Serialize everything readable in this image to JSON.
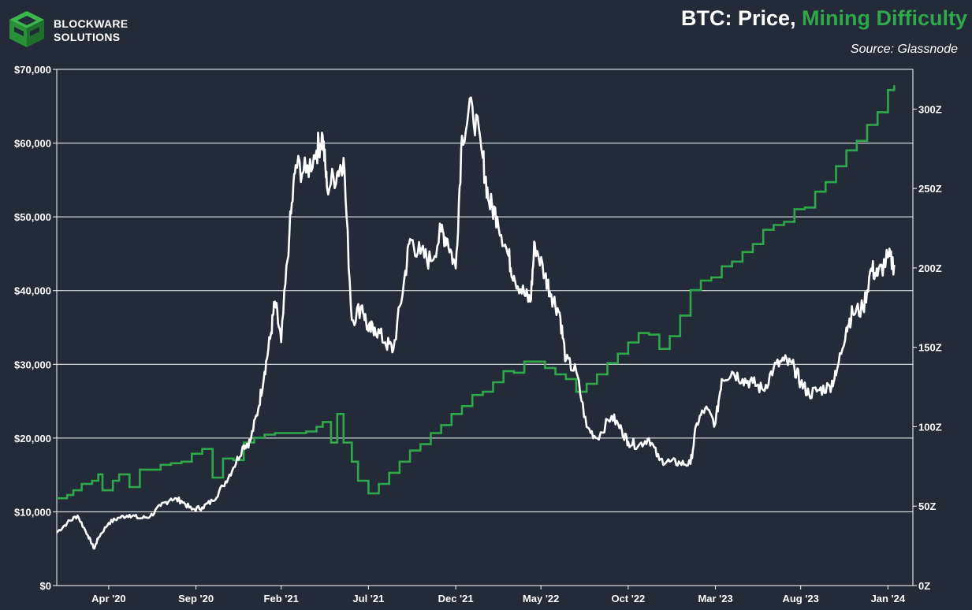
{
  "logo": {
    "line1": "BLOCKWARE",
    "line2": "SOLUTIONS"
  },
  "title": {
    "part1": "BTC: Price, ",
    "part2": "Mining Difficulty"
  },
  "subtitle": "Source: Glassnode",
  "colors": {
    "background": "#232a38",
    "price": "#ffffff",
    "difficulty": "#2ea84a",
    "grid": "#ffffff"
  },
  "chart_data": {
    "type": "line",
    "x_range": [
      2020.0,
      2024.12
    ],
    "xticks": [
      {
        "label": "Apr '20",
        "x": 2020.25
      },
      {
        "label": "Sep '20",
        "x": 2020.67
      },
      {
        "label": "Feb '21",
        "x": 2021.08
      },
      {
        "label": "Jul '21",
        "x": 2021.5
      },
      {
        "label": "Dec '21",
        "x": 2021.92
      },
      {
        "label": "May '22",
        "x": 2022.33
      },
      {
        "label": "Oct '22",
        "x": 2022.75
      },
      {
        "label": "Mar '23",
        "x": 2023.17
      },
      {
        "label": "Aug '23",
        "x": 2023.58
      },
      {
        "label": "Jan '24",
        "x": 2024.0
      }
    ],
    "y_left": {
      "min": 0,
      "max": 70000,
      "ticks": [
        {
          "label": "$0",
          "v": 0
        },
        {
          "label": "$10,000",
          "v": 10000
        },
        {
          "label": "$20,000",
          "v": 20000
        },
        {
          "label": "$30,000",
          "v": 30000
        },
        {
          "label": "$40,000",
          "v": 40000
        },
        {
          "label": "$50,000",
          "v": 50000
        },
        {
          "label": "$60,000",
          "v": 60000
        },
        {
          "label": "$70,000",
          "v": 70000
        }
      ]
    },
    "y_right": {
      "min": 0,
      "max": 325,
      "ticks": [
        {
          "label": "0Z",
          "v": 0
        },
        {
          "label": "50Z",
          "v": 50
        },
        {
          "label": "100Z",
          "v": 100
        },
        {
          "label": "150Z",
          "v": 150
        },
        {
          "label": "200Z",
          "v": 200
        },
        {
          "label": "250Z",
          "v": 250
        },
        {
          "label": "300Z",
          "v": 300
        }
      ]
    },
    "series": [
      {
        "name": "Price",
        "axis": "left",
        "x": [
          2020.0,
          2020.05,
          2020.1,
          2020.15,
          2020.18,
          2020.2,
          2020.25,
          2020.3,
          2020.35,
          2020.4,
          2020.45,
          2020.5,
          2020.55,
          2020.6,
          2020.65,
          2020.7,
          2020.75,
          2020.8,
          2020.85,
          2020.9,
          2020.93,
          2020.97,
          2021.0,
          2021.03,
          2021.05,
          2021.08,
          2021.12,
          2021.15,
          2021.2,
          2021.25,
          2021.28,
          2021.3,
          2021.35,
          2021.38,
          2021.42,
          2021.47,
          2021.5,
          2021.53,
          2021.58,
          2021.62,
          2021.67,
          2021.7,
          2021.75,
          2021.8,
          2021.85,
          2021.88,
          2021.92,
          2021.95,
          2022.0,
          2022.05,
          2022.08,
          2022.12,
          2022.17,
          2022.2,
          2022.25,
          2022.28,
          2022.3,
          2022.35,
          2022.38,
          2022.42,
          2022.45,
          2022.5,
          2022.55,
          2022.6,
          2022.67,
          2022.72,
          2022.75,
          2022.8,
          2022.85,
          2022.9,
          2022.95,
          2023.0,
          2023.05,
          2023.08,
          2023.12,
          2023.17,
          2023.2,
          2023.25,
          2023.3,
          2023.35,
          2023.4,
          2023.45,
          2023.5,
          2023.55,
          2023.58,
          2023.62,
          2023.67,
          2023.72,
          2023.75,
          2023.8,
          2023.83,
          2023.88,
          2023.92,
          2023.95,
          2024.0,
          2024.03
        ],
        "values": [
          7200,
          8500,
          9500,
          6800,
          5000,
          6500,
          8500,
          9200,
          9600,
          9100,
          9400,
          10800,
          11800,
          11500,
          10300,
          10600,
          11500,
          13500,
          16000,
          19000,
          19500,
          24000,
          29000,
          34000,
          38500,
          33000,
          48000,
          57000,
          56000,
          59000,
          61000,
          54000,
          56000,
          58000,
          36000,
          38000,
          34500,
          35000,
          33000,
          32000,
          41000,
          47000,
          45000,
          44000,
          48000,
          47000,
          43000,
          61000,
          65000,
          58000,
          52000,
          50000,
          45000,
          42000,
          39500,
          38500,
          46500,
          42000,
          39500,
          37000,
          30500,
          29000,
          21500,
          20000,
          23000,
          21000,
          19500,
          19000,
          20000,
          17000,
          16800,
          16600,
          16500,
          22000,
          24000,
          22000,
          28000,
          29000,
          28000,
          27500,
          26500,
          29500,
          30500,
          29500,
          27500,
          26000,
          26500,
          27000,
          28500,
          35000,
          37000,
          37500,
          43000,
          42000,
          44500,
          43500
        ]
      },
      {
        "name": "Mining Difficulty",
        "axis": "right",
        "x": [
          2020.0,
          2020.05,
          2020.08,
          2020.12,
          2020.17,
          2020.2,
          2020.22,
          2020.27,
          2020.3,
          2020.35,
          2020.4,
          2020.45,
          2020.5,
          2020.55,
          2020.6,
          2020.65,
          2020.7,
          2020.75,
          2020.8,
          2020.85,
          2020.9,
          2020.95,
          2021.0,
          2021.05,
          2021.1,
          2021.15,
          2021.2,
          2021.25,
          2021.28,
          2021.32,
          2021.35,
          2021.38,
          2021.42,
          2021.45,
          2021.5,
          2021.55,
          2021.6,
          2021.65,
          2021.7,
          2021.75,
          2021.8,
          2021.85,
          2021.9,
          2021.95,
          2022.0,
          2022.05,
          2022.1,
          2022.15,
          2022.2,
          2022.25,
          2022.3,
          2022.35,
          2022.4,
          2022.45,
          2022.5,
          2022.55,
          2022.6,
          2022.65,
          2022.7,
          2022.75,
          2022.8,
          2022.85,
          2022.9,
          2022.95,
          2023.0,
          2023.05,
          2023.1,
          2023.15,
          2023.2,
          2023.25,
          2023.3,
          2023.35,
          2023.4,
          2023.45,
          2023.5,
          2023.55,
          2023.6,
          2023.65,
          2023.7,
          2023.75,
          2023.8,
          2023.85,
          2023.9,
          2023.95,
          2024.0,
          2024.03
        ],
        "values": [
          55,
          57,
          60,
          64,
          66,
          70,
          60,
          66,
          70,
          62,
          73,
          73,
          76,
          77,
          78,
          83,
          86,
          68,
          80,
          79,
          90,
          93,
          95,
          96,
          96,
          96,
          97,
          100,
          103,
          90,
          108,
          90,
          78,
          66,
          58,
          64,
          71,
          78,
          85,
          89,
          96,
          101,
          108,
          113,
          120,
          122,
          128,
          135,
          134,
          141,
          141,
          137,
          133,
          130,
          122,
          127,
          133,
          140,
          146,
          153,
          159,
          158,
          149,
          157,
          170,
          186,
          192,
          194,
          201,
          204,
          210,
          215,
          224,
          227,
          229,
          237,
          238,
          248,
          254,
          264,
          274,
          280,
          290,
          298,
          312,
          315
        ]
      }
    ]
  }
}
